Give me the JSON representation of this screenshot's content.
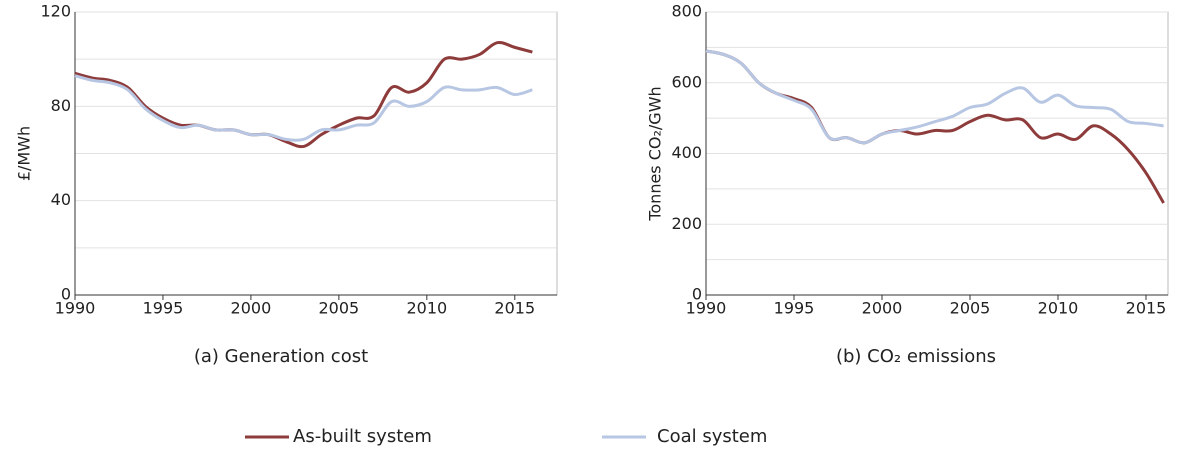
{
  "chart_data": [
    {
      "type": "line",
      "title": "(a) Generation cost",
      "y_label": "£/MWh",
      "x": [
        1990,
        1991,
        1992,
        1993,
        1994,
        1995,
        1996,
        1997,
        1998,
        1999,
        2000,
        2001,
        2002,
        2003,
        2004,
        2005,
        2006,
        2007,
        2008,
        2009,
        2010,
        2011,
        2012,
        2013,
        2014,
        2015,
        2016
      ],
      "series": [
        {
          "name": "As-built system",
          "color": "#8e3b3b",
          "values": [
            94,
            92,
            91,
            88,
            80,
            75,
            72,
            72,
            70,
            70,
            68,
            68,
            65,
            63,
            68,
            72,
            75,
            76,
            88,
            86,
            90,
            100,
            100,
            102,
            107,
            105,
            103
          ]
        },
        {
          "name": "Coal system",
          "color": "#b7c6e2",
          "values": [
            93,
            91,
            90,
            87,
            79,
            74,
            71,
            72,
            70,
            70,
            68,
            68,
            66,
            66,
            70,
            70,
            72,
            73,
            82,
            80,
            82,
            88,
            87,
            87,
            88,
            85,
            87
          ]
        }
      ],
      "xlim": [
        1990,
        2017.4
      ],
      "xticks": [
        1990,
        1995,
        2000,
        2005,
        2010,
        2015
      ],
      "ylim": [
        0,
        120
      ],
      "yticks": [
        0,
        40,
        80,
        120
      ],
      "minor_yticks": [
        20,
        60,
        100
      ],
      "grid": true,
      "smooth": true
    },
    {
      "type": "line",
      "title": "(b) CO₂ emissions",
      "y_label": "Tonnes CO₂/GWh",
      "x": [
        1990,
        1991,
        1992,
        1993,
        1994,
        1995,
        1996,
        1997,
        1998,
        1999,
        2000,
        2001,
        2002,
        2003,
        2004,
        2005,
        2006,
        2007,
        2008,
        2009,
        2010,
        2011,
        2012,
        2013,
        2014,
        2015,
        2016
      ],
      "series": [
        {
          "name": "As-built system",
          "color": "#8e3b3b",
          "values": [
            690,
            680,
            655,
            600,
            570,
            555,
            530,
            445,
            445,
            430,
            455,
            465,
            455,
            465,
            465,
            490,
            508,
            495,
            495,
            445,
            455,
            440,
            478,
            455,
            410,
            345,
            260
          ]
        },
        {
          "name": "Coal system",
          "color": "#b7c6e2",
          "values": [
            690,
            680,
            655,
            600,
            570,
            550,
            525,
            445,
            445,
            430,
            455,
            465,
            475,
            490,
            505,
            530,
            540,
            570,
            585,
            545,
            565,
            535,
            530,
            525,
            490,
            485,
            478
          ]
        }
      ],
      "xlim": [
        1990,
        2016.25
      ],
      "xticks": [
        1990,
        1995,
        2000,
        2005,
        2010,
        2015
      ],
      "ylim": [
        0,
        800
      ],
      "yticks": [
        0,
        200,
        400,
        600,
        800
      ],
      "minor_yticks": [
        100,
        300,
        500,
        700
      ],
      "grid": true,
      "smooth": true
    }
  ]
}
